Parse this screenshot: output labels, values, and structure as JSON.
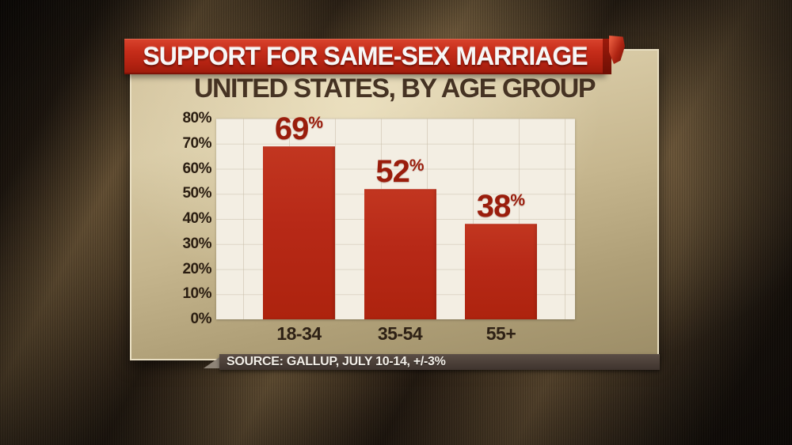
{
  "banner": {
    "title": "SUPPORT FOR SAME-SEX MARRIAGE"
  },
  "subtitle": "UNITED STATES, BY AGE GROUP",
  "source": {
    "label": "SOURCE: GALLUP, JULY 10-14, +/-3%"
  },
  "chart_data": {
    "type": "bar",
    "title": "SUPPORT FOR SAME-SEX MARRIAGE",
    "subtitle": "UNITED STATES, BY AGE GROUP",
    "categories": [
      "18-34",
      "35-54",
      "55+"
    ],
    "values": [
      69,
      52,
      38
    ],
    "unit": "%",
    "xlabel": "",
    "ylabel": "",
    "ylim": [
      0,
      80
    ],
    "ytick_step": 10,
    "ytick_labels": [
      "0%",
      "10%",
      "20%",
      "30%",
      "40%",
      "50%",
      "60%",
      "70%",
      "80%"
    ],
    "grid": true,
    "legend": false,
    "source": "SOURCE: GALLUP, JULY 10-14, +/-3%",
    "colors": {
      "bar": "#b72917",
      "value_label": "#9a1d0c",
      "plot_background": "#f3eee3",
      "gridline": "#cfc6b2",
      "banner": "#c62d1a",
      "card": "#c9b992",
      "source_bar": "#4a3e37",
      "background": "#241a10"
    }
  }
}
